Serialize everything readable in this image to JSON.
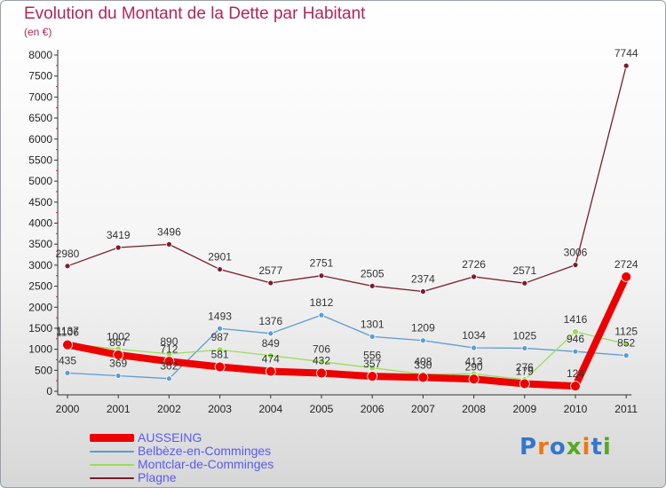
{
  "chart_data": {
    "type": "line",
    "title": "Evolution du Montant de la Dette par Habitant",
    "subtitle": "(en €)",
    "x": [
      "2000",
      "2001",
      "2002",
      "2003",
      "2004",
      "2005",
      "2006",
      "2007",
      "2008",
      "2009",
      "2010",
      "2011"
    ],
    "ylim": [
      0,
      8000
    ],
    "yticks": [
      0,
      500,
      1000,
      1500,
      2000,
      2500,
      3000,
      3500,
      4000,
      4500,
      5000,
      5500,
      6000,
      6500,
      7000,
      7500,
      8000
    ],
    "grid": false,
    "legend_position": "bottom-left",
    "series": [
      {
        "name": "AUSSEING",
        "color": "#ee0000",
        "values": [
          1106,
          867,
          712,
          581,
          474,
          432,
          357,
          330,
          290,
          179,
          124,
          2724
        ]
      },
      {
        "name": "Belbèze-en-Comminges",
        "color": "#5b9bd5",
        "values": [
          435,
          369,
          302,
          1493,
          1376,
          1812,
          1301,
          1209,
          1034,
          1025,
          946,
          852
        ]
      },
      {
        "name": "Montclar-de-Comminges",
        "color": "#99dd55",
        "values": [
          1137,
          1002,
          890,
          987,
          849,
          706,
          556,
          408,
          413,
          276,
          1416,
          1125
        ]
      },
      {
        "name": "Plagne",
        "color": "#7a1c2c",
        "values": [
          2980,
          3419,
          3496,
          2901,
          2577,
          2751,
          2505,
          2374,
          2726,
          2571,
          3006,
          7744
        ]
      }
    ]
  },
  "branding": {
    "logo_text": "Proxiti"
  }
}
